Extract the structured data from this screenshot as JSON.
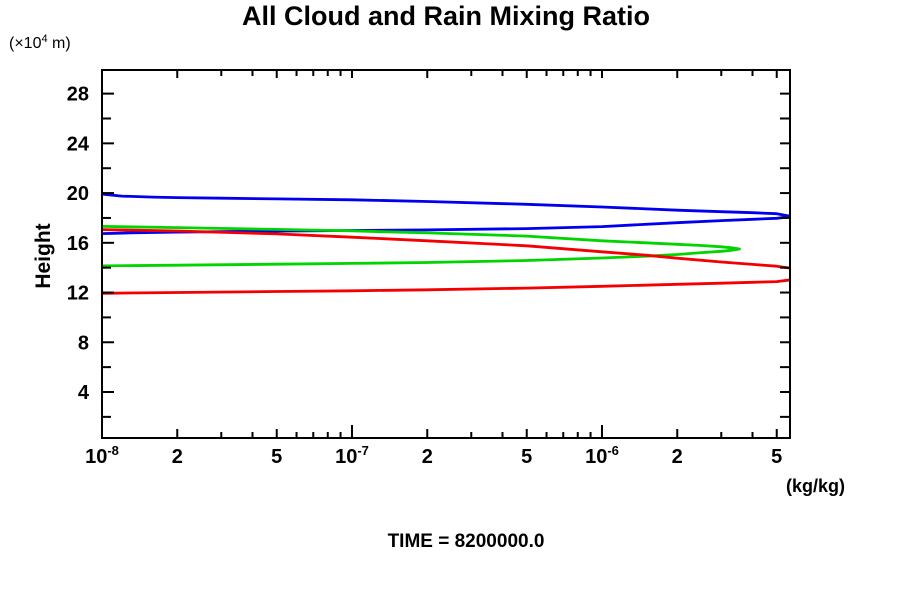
{
  "header": {
    "title": "All Cloud and Rain Mixing Ratio"
  },
  "axis_labels": {
    "y_units_pre": "(×10",
    "y_units_sup": "4",
    "y_units_post": " m)",
    "y_title": "Height",
    "x_units": "(kg/kg)"
  },
  "footer": {
    "time": "TIME = 8200000.0"
  },
  "chart_data": {
    "type": "line",
    "title": "All Cloud and Rain Mixing Ratio",
    "xlabel": "(kg/kg)",
    "ylabel": "Height (×10⁴ m)",
    "x_scale": "log",
    "xlim": [
      1e-08,
      5.65e-06
    ],
    "ylim": [
      0.3,
      29.9
    ],
    "grid": false,
    "legend": "none",
    "axis_color": "#000000",
    "x_decade_ticks": [
      {
        "value": 1e-08,
        "base": "10",
        "sup": "-8"
      },
      {
        "value": 1e-07,
        "base": "10",
        "sup": "-7"
      },
      {
        "value": 1e-06,
        "base": "10",
        "sup": "-6"
      }
    ],
    "x_labeled_multipliers": [
      2,
      5
    ],
    "x_minor_multipliers": [
      3,
      4,
      6,
      7,
      8,
      9
    ],
    "y_major_ticks": [
      4,
      8,
      12,
      16,
      20,
      24,
      28
    ],
    "y_minor_ticks": [
      2,
      6,
      10,
      14,
      18,
      22,
      26
    ],
    "series": [
      {
        "name": "blue-profile",
        "color": "#0000ee",
        "points": [
          [
            1e-08,
            19.92
          ],
          [
            1.2e-08,
            19.76
          ],
          [
            1.6e-08,
            19.68
          ],
          [
            2e-08,
            19.64
          ],
          [
            3e-08,
            19.59
          ],
          [
            5e-08,
            19.53
          ],
          [
            1e-07,
            19.46
          ],
          [
            2e-07,
            19.32
          ],
          [
            5e-07,
            19.1
          ],
          [
            1e-06,
            18.88
          ],
          [
            2e-06,
            18.62
          ],
          [
            3e-06,
            18.5
          ],
          [
            4e-06,
            18.42
          ],
          [
            5e-06,
            18.34
          ],
          [
            5.75e-06,
            18.12
          ],
          [
            5e-06,
            17.97
          ],
          [
            4e-06,
            17.89
          ],
          [
            3e-06,
            17.79
          ],
          [
            2e-06,
            17.62
          ],
          [
            1e-06,
            17.3
          ],
          [
            5e-07,
            17.14
          ],
          [
            2e-07,
            17.04
          ],
          [
            1e-07,
            16.99
          ],
          [
            5e-08,
            16.94
          ],
          [
            2e-08,
            16.86
          ],
          [
            1.3e-08,
            16.8
          ],
          [
            1e-08,
            16.74
          ]
        ]
      },
      {
        "name": "green-profile",
        "color": "#00d500",
        "points": [
          [
            1e-08,
            17.32
          ],
          [
            2e-08,
            17.22
          ],
          [
            5e-08,
            17.08
          ],
          [
            1e-07,
            16.96
          ],
          [
            2e-07,
            16.8
          ],
          [
            5e-07,
            16.54
          ],
          [
            1e-06,
            16.16
          ],
          [
            1.5e-06,
            16.0
          ],
          [
            2e-06,
            15.88
          ],
          [
            2.5e-06,
            15.78
          ],
          [
            3e-06,
            15.68
          ],
          [
            3.3e-06,
            15.6
          ],
          [
            3.55e-06,
            15.5
          ],
          [
            3.3e-06,
            15.4
          ],
          [
            3e-06,
            15.32
          ],
          [
            2.5e-06,
            15.21
          ],
          [
            2e-06,
            15.06
          ],
          [
            1.5e-06,
            14.92
          ],
          [
            1e-06,
            14.78
          ],
          [
            5e-07,
            14.58
          ],
          [
            2e-07,
            14.42
          ],
          [
            1e-07,
            14.34
          ],
          [
            5e-08,
            14.28
          ],
          [
            2e-08,
            14.2
          ],
          [
            1e-08,
            14.14
          ]
        ]
      },
      {
        "name": "red-profile",
        "color": "#f50000",
        "points": [
          [
            1e-08,
            17.06
          ],
          [
            2e-08,
            16.95
          ],
          [
            5e-08,
            16.72
          ],
          [
            1e-07,
            16.45
          ],
          [
            2e-07,
            16.16
          ],
          [
            5e-07,
            15.76
          ],
          [
            1e-06,
            15.28
          ],
          [
            1.5e-06,
            15.0
          ],
          [
            2e-06,
            14.76
          ],
          [
            3e-06,
            14.46
          ],
          [
            4e-06,
            14.26
          ],
          [
            5e-06,
            14.12
          ],
          [
            8.5e-06,
            13.45
          ],
          [
            5e-06,
            12.88
          ],
          [
            4e-06,
            12.82
          ],
          [
            3e-06,
            12.75
          ],
          [
            2e-06,
            12.66
          ],
          [
            1e-06,
            12.5
          ],
          [
            5e-07,
            12.36
          ],
          [
            2e-07,
            12.22
          ],
          [
            1e-07,
            12.14
          ],
          [
            5e-08,
            12.08
          ],
          [
            2e-08,
            12.0
          ],
          [
            1e-08,
            11.94
          ]
        ]
      }
    ]
  }
}
